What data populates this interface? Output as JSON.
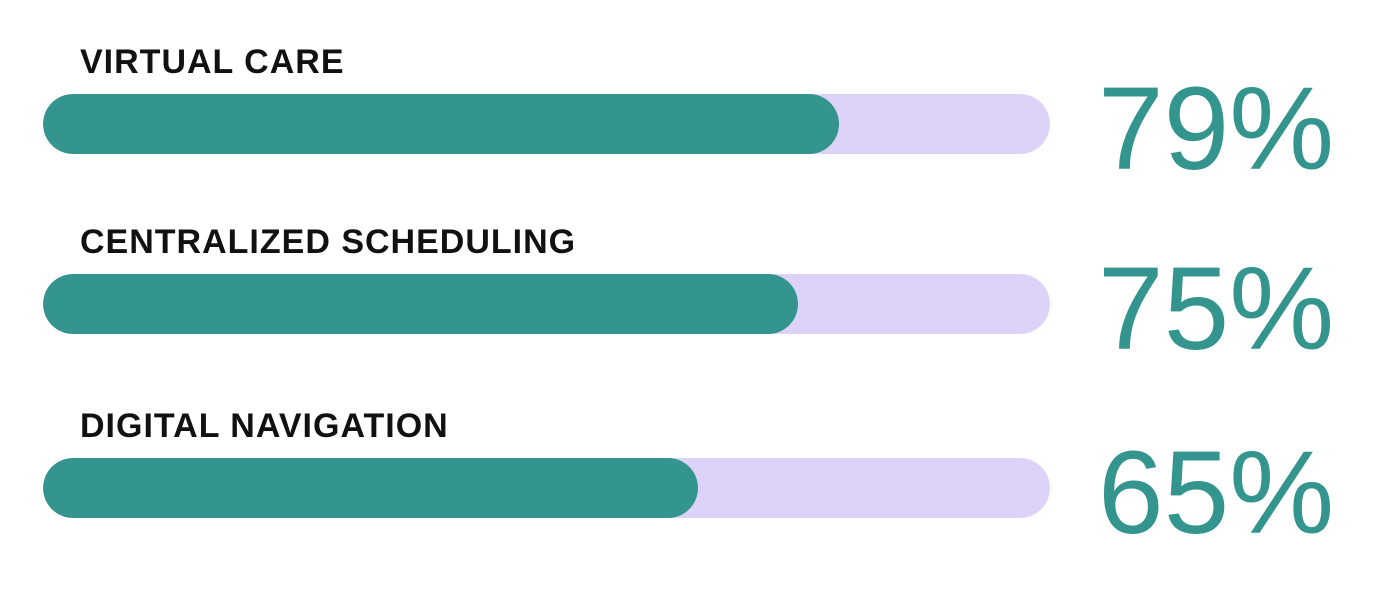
{
  "colors": {
    "fill": "#33958e",
    "track": "#ddd3f8",
    "label": "#111111",
    "value": "#33958e"
  },
  "chart_data": {
    "type": "bar",
    "orientation": "horizontal",
    "categories": [
      "VIRTUAL CARE",
      "CENTRALIZED SCHEDULING",
      "DIGITAL NAVIGATION"
    ],
    "values": [
      79,
      75,
      65
    ],
    "value_labels": [
      "79%",
      "75%",
      "65%"
    ],
    "xlim": [
      0,
      100
    ],
    "grid": false,
    "title": "",
    "xlabel": "",
    "ylabel": ""
  }
}
